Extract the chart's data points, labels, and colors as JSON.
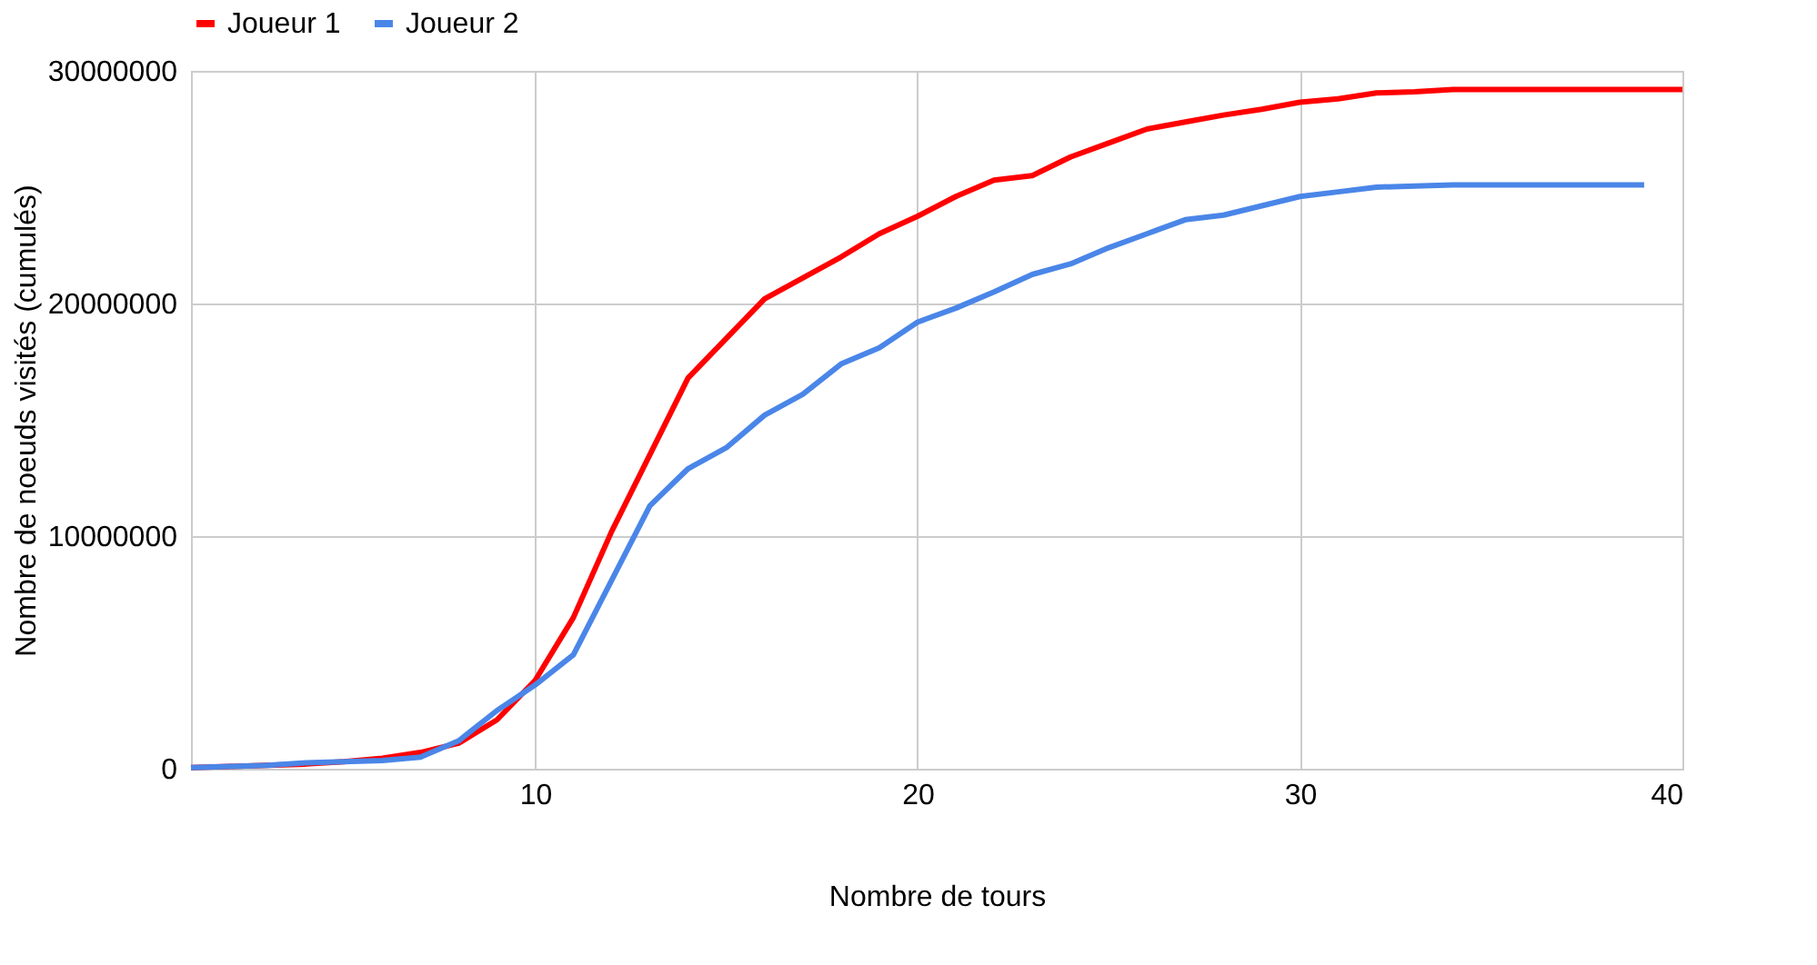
{
  "chart_data": {
    "type": "line",
    "xlabel": "Nombre de tours",
    "ylabel": "Nombre de noeuds visités (cumulés)",
    "x": [
      1,
      2,
      3,
      4,
      5,
      6,
      7,
      8,
      9,
      10,
      11,
      12,
      13,
      14,
      15,
      16,
      17,
      18,
      19,
      20,
      21,
      22,
      23,
      24,
      25,
      26,
      27,
      28,
      29,
      30,
      31,
      32,
      33,
      34,
      35,
      36,
      37,
      38,
      39,
      40
    ],
    "series": [
      {
        "name": "Joueur 1",
        "color": "#ff0000",
        "values": [
          50000,
          100000,
          150000,
          200000,
          300000,
          450000,
          700000,
          1100000,
          2100000,
          3800000,
          6500000,
          10200000,
          13500000,
          16800000,
          18500000,
          20200000,
          21100000,
          22000000,
          23000000,
          23750000,
          24600000,
          25300000,
          25500000,
          26300000,
          26900000,
          27500000,
          27800000,
          28100000,
          28350000,
          28650000,
          28800000,
          29050000,
          29100000,
          29200000,
          29200000,
          29200000,
          29200000,
          29200000,
          29200000,
          29200000
        ]
      },
      {
        "name": "Joueur 2",
        "color": "#4a86e8",
        "values": [
          50000,
          100000,
          150000,
          250000,
          300000,
          350000,
          500000,
          1200000,
          2500000,
          3600000,
          4900000,
          8100000,
          11300000,
          12900000,
          13800000,
          15200000,
          16100000,
          17400000,
          18100000,
          19200000,
          19800000,
          20500000,
          21250000,
          21700000,
          22400000,
          23000000,
          23600000,
          23800000,
          24200000,
          24600000,
          24800000,
          25000000,
          25050000,
          25100000,
          25100000,
          25100000,
          25100000,
          25100000,
          25100000,
          null
        ]
      }
    ],
    "xlim": [
      1,
      40
    ],
    "xticks": [
      10,
      20,
      30,
      40
    ],
    "ylim": [
      0,
      30000000
    ],
    "yticks": [
      0,
      10000000,
      20000000,
      30000000
    ],
    "grid": true,
    "legend": "top",
    "marker": "none",
    "line_style": "solid"
  }
}
